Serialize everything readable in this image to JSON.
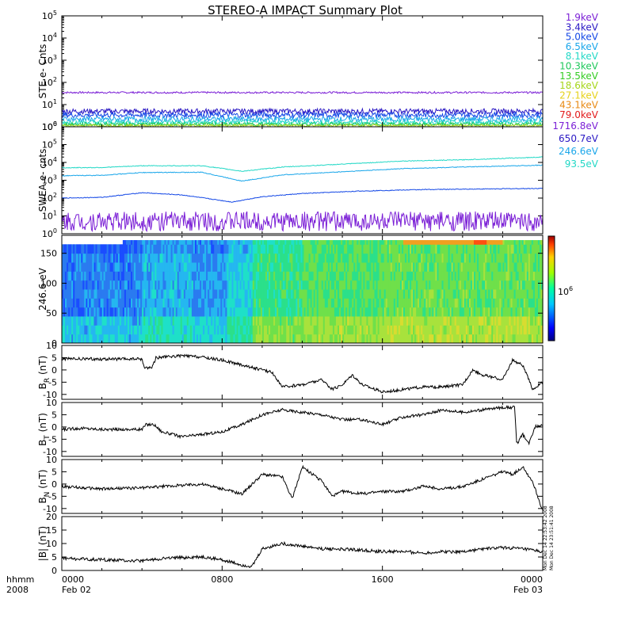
{
  "chart_data": {
    "type": "line",
    "title": "STEREO-A IMPACT Summary Plot",
    "date_year": "2008",
    "time_label": "hhmm",
    "x_ticks": [
      {
        "t": 0,
        "time": "0000",
        "date": "Feb 02"
      },
      {
        "t": 8,
        "time": "0800",
        "date": ""
      },
      {
        "t": 16,
        "time": "1600",
        "date": ""
      },
      {
        "t": 24,
        "time": "0000",
        "date": "Feb 03"
      }
    ],
    "x_range_hours": [
      0,
      24
    ],
    "side_stamp": [
      "Mon Dec 14 22:53:42 2008",
      "Mon Dec 14 23:51:41 2008"
    ],
    "panels": [
      {
        "id": "ste",
        "ylabel": "STE e- Cnts",
        "scale": "log",
        "ylim_exp": [
          0,
          5
        ],
        "tick_base": "10",
        "tick_exps": [
          "0",
          "1",
          "2",
          "3",
          "4",
          "5"
        ],
        "legend": [
          {
            "label": "1.9keV",
            "color": "#7b1fd6"
          },
          {
            "label": "3.4keV",
            "color": "#2a18c4"
          },
          {
            "label": "5.0keV",
            "color": "#1448e6"
          },
          {
            "label": "6.5keV",
            "color": "#19a6ea"
          },
          {
            "label": "8.1keV",
            "color": "#22d8c6"
          },
          {
            "label": "10.3keV",
            "color": "#1ec85a"
          },
          {
            "label": "13.5keV",
            "color": "#33cc22"
          },
          {
            "label": "18.6keV",
            "color": "#a6d61a"
          },
          {
            "label": "27.1keV",
            "color": "#e6d21a"
          },
          {
            "label": "43.1keV",
            "color": "#e88a14"
          },
          {
            "label": "79.0keV",
            "color": "#e21a1a"
          }
        ],
        "series": [
          {
            "color": "#7b1fd6",
            "base": 35,
            "noise": 0.04
          },
          {
            "color": "#2a18c4",
            "base": 5,
            "noise": 0.12
          },
          {
            "color": "#1448e6",
            "base": 3.4,
            "noise": 0.12
          },
          {
            "color": "#19a6ea",
            "base": 2.2,
            "noise": 0.12
          },
          {
            "color": "#22d8c6",
            "base": 1.6,
            "noise": 0.1
          },
          {
            "color": "#1ec85a",
            "base": 1.3,
            "noise": 0.08
          },
          {
            "color": "#a6d61a",
            "base": 1.15,
            "noise": 0.05
          }
        ]
      },
      {
        "id": "swea",
        "ylabel": "SWEA e- cnts",
        "scale": "log",
        "ylim_exp": [
          0,
          6
        ],
        "tick_base": "10",
        "tick_exps": [
          "0",
          "1",
          "2",
          "3",
          "4",
          "5",
          "6"
        ],
        "legend": [
          {
            "label": "1716.8eV",
            "color": "#7b1fd6"
          },
          {
            "label": "650.7eV",
            "color": "#2a18c4"
          },
          {
            "label": "246.6eV",
            "color": "#19a6ea"
          },
          {
            "label": "93.5eV",
            "color": "#22d8c6"
          }
        ],
        "series": [
          {
            "color": "#22d8c6",
            "points": [
              [
                0,
                5000
              ],
              [
                2,
                5200
              ],
              [
                4,
                6500
              ],
              [
                7,
                6500
              ],
              [
                9,
                3200
              ],
              [
                11,
                5500
              ],
              [
                14,
                8000
              ],
              [
                17,
                12000
              ],
              [
                20,
                14000
              ],
              [
                24,
                20000
              ]
            ]
          },
          {
            "color": "#19a6ea",
            "points": [
              [
                0,
                1800
              ],
              [
                2,
                1900
              ],
              [
                4,
                2700
              ],
              [
                7,
                2800
              ],
              [
                9,
                900
              ],
              [
                11,
                2000
              ],
              [
                14,
                3000
              ],
              [
                17,
                4500
              ],
              [
                20,
                5500
              ],
              [
                24,
                7000
              ]
            ]
          },
          {
            "color": "#1448e6",
            "points": [
              [
                0,
                100
              ],
              [
                2,
                110
              ],
              [
                4,
                200
              ],
              [
                6,
                150
              ],
              [
                8.5,
                60
              ],
              [
                10,
                120
              ],
              [
                12,
                180
              ],
              [
                15,
                250
              ],
              [
                18,
                300
              ],
              [
                24,
                350
              ]
            ]
          },
          {
            "color": "#7b1fd6",
            "points": [
              [
                0,
                5
              ],
              [
                24,
                5
              ]
            ],
            "noise": 0.55
          }
        ]
      },
      {
        "id": "pad",
        "type": "heatmap",
        "ylabel": "246.6 eV",
        "ylim": [
          0,
          180
        ],
        "yticks": [
          "0",
          "50",
          "100",
          "150"
        ],
        "colorbar_label": "10",
        "colorbar_exp": "6"
      },
      {
        "id": "br",
        "ylabel": "B",
        "ysub": "R",
        "yunit": " (nT)",
        "ylim": [
          -12,
          10
        ],
        "yticks": [
          "-10",
          "-5",
          "0",
          "5",
          "10"
        ],
        "points": [
          [
            0,
            4.5
          ],
          [
            1,
            4.5
          ],
          [
            3,
            4.4
          ],
          [
            4,
            4.5
          ],
          [
            4.1,
            1
          ],
          [
            4.5,
            1
          ],
          [
            4.7,
            5
          ],
          [
            6,
            5.8
          ],
          [
            7,
            5.2
          ],
          [
            8,
            4
          ],
          [
            9,
            2
          ],
          [
            10.5,
            -1
          ],
          [
            11,
            -7
          ],
          [
            12,
            -6
          ],
          [
            13,
            -4
          ],
          [
            13.5,
            -8
          ],
          [
            14,
            -6
          ],
          [
            14.5,
            -2
          ],
          [
            15,
            -6
          ],
          [
            16,
            -9
          ],
          [
            17,
            -8
          ],
          [
            18,
            -7
          ],
          [
            19,
            -7
          ],
          [
            20,
            -6
          ],
          [
            20.5,
            0
          ],
          [
            21,
            -2
          ],
          [
            22,
            -4
          ],
          [
            22.5,
            4
          ],
          [
            23,
            2
          ],
          [
            23.5,
            -8
          ],
          [
            24,
            -5
          ]
        ]
      },
      {
        "id": "bt",
        "ylabel": "B",
        "ysub": "T",
        "yunit": " (nT)",
        "ylim": [
          -12,
          10
        ],
        "yticks": [
          "-10",
          "-5",
          "0",
          "5",
          "10"
        ],
        "points": [
          [
            0,
            -1
          ],
          [
            1,
            -0.5
          ],
          [
            2,
            -1
          ],
          [
            4,
            -1
          ],
          [
            4.2,
            1
          ],
          [
            4.6,
            1
          ],
          [
            5,
            -2
          ],
          [
            6,
            -4
          ],
          [
            7,
            -3
          ],
          [
            8,
            -2
          ],
          [
            9,
            1
          ],
          [
            10,
            5
          ],
          [
            11,
            7
          ],
          [
            12,
            6
          ],
          [
            13,
            5
          ],
          [
            14,
            3
          ],
          [
            15,
            3
          ],
          [
            16,
            1
          ],
          [
            17,
            4
          ],
          [
            18,
            5
          ],
          [
            19,
            7
          ],
          [
            20,
            6
          ],
          [
            21,
            7
          ],
          [
            22,
            8
          ],
          [
            22.6,
            8
          ],
          [
            22.7,
            -7
          ],
          [
            23,
            -3
          ],
          [
            23.3,
            -7
          ],
          [
            23.6,
            0
          ],
          [
            24,
            1
          ]
        ]
      },
      {
        "id": "bn",
        "ylabel": "B",
        "ysub": "N",
        "yunit": " (nT)",
        "ylim": [
          -12,
          10
        ],
        "yticks": [
          "-10",
          "-5",
          "0",
          "5",
          "10"
        ],
        "points": [
          [
            0,
            -1
          ],
          [
            2,
            -2
          ],
          [
            4,
            -1.5
          ],
          [
            6,
            -0.5
          ],
          [
            7,
            0
          ],
          [
            8,
            -2
          ],
          [
            9,
            -4
          ],
          [
            10,
            4
          ],
          [
            11,
            3
          ],
          [
            11.5,
            -6
          ],
          [
            12,
            7
          ],
          [
            13,
            1
          ],
          [
            13.5,
            -5
          ],
          [
            14,
            -3
          ],
          [
            15,
            -4
          ],
          [
            16,
            -3
          ],
          [
            17,
            -3
          ],
          [
            18,
            -1
          ],
          [
            19,
            -2
          ],
          [
            20,
            -1
          ],
          [
            21,
            2
          ],
          [
            22,
            5
          ],
          [
            22.5,
            4
          ],
          [
            23,
            7
          ],
          [
            23.5,
            1
          ],
          [
            24,
            -11
          ]
        ]
      },
      {
        "id": "bmag",
        "ylabel": "|B|",
        "yunit": " (nT)",
        "ylim": [
          0,
          20
        ],
        "yticks": [
          "0",
          "5",
          "10",
          "15",
          "20"
        ],
        "points": [
          [
            0,
            4.5
          ],
          [
            2,
            4
          ],
          [
            4,
            3.5
          ],
          [
            5,
            4.5
          ],
          [
            7,
            5
          ],
          [
            8,
            4
          ],
          [
            9,
            2
          ],
          [
            9.5,
            1.5
          ],
          [
            10,
            8
          ],
          [
            11,
            10
          ],
          [
            12,
            9
          ],
          [
            13,
            8
          ],
          [
            14,
            8
          ],
          [
            15,
            7.5
          ],
          [
            16,
            7
          ],
          [
            17,
            7
          ],
          [
            18,
            6.5
          ],
          [
            19,
            7
          ],
          [
            20,
            7
          ],
          [
            21,
            8
          ],
          [
            22,
            8.5
          ],
          [
            23,
            8
          ],
          [
            24,
            7
          ]
        ]
      }
    ]
  }
}
